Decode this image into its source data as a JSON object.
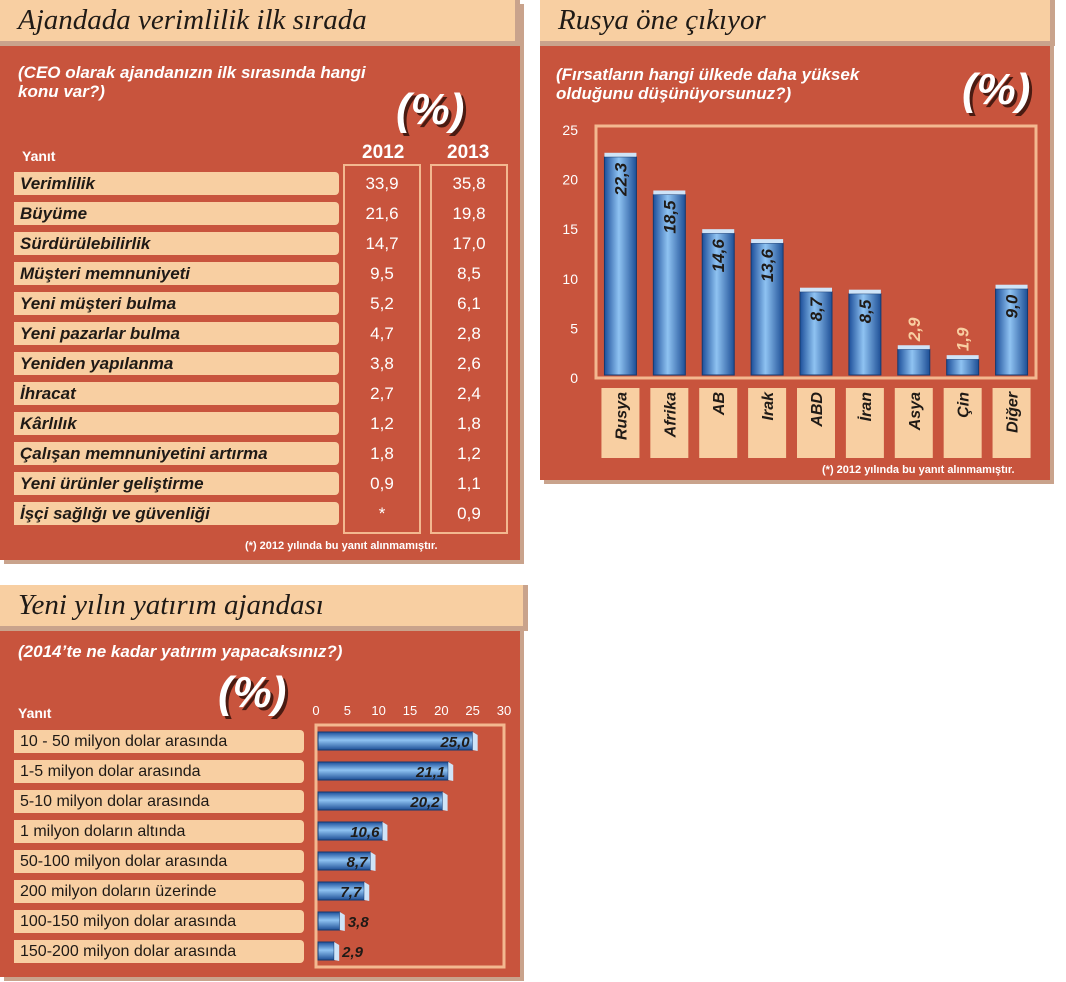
{
  "panel1": {
    "title": "Ajandada verimlilik ilk sırada",
    "question": "(CEO olarak ajandanızın ilk sırasında hangi konu var?)",
    "unit": "(%)",
    "col_header": "Yanıt",
    "footnote": "(*) 2012 yılında bu yanıt alınmamıştır."
  },
  "panel2": {
    "title": "Rusya öne çıkıyor",
    "question": "(Fırsatların hangi ülkede daha yüksek olduğunu düşünüyorsunuz?)",
    "unit": "(%)",
    "footnote": "(*) 2012 yılında bu yanıt alınmamıştır."
  },
  "panel3": {
    "title": "Yeni yılın yatırım ajandası",
    "question": "(2014’te ne kadar yatırım yapacaksınız?)",
    "unit": "(%)",
    "col_header": "Yanıt"
  },
  "chart_data": [
    {
      "type": "table",
      "columns": [
        "2012",
        "2013"
      ],
      "rows": [
        {
          "label": "Verimlilik",
          "values": [
            "33,9",
            "35,8"
          ]
        },
        {
          "label": "Büyüme",
          "values": [
            "21,6",
            "19,8"
          ]
        },
        {
          "label": "Sürdürülebilirlik",
          "values": [
            "14,7",
            "17,0"
          ]
        },
        {
          "label": "Müşteri memnuniyeti",
          "values": [
            "9,5",
            "8,5"
          ]
        },
        {
          "label": "Yeni müşteri bulma",
          "values": [
            "5,2",
            "6,1"
          ]
        },
        {
          "label": "Yeni pazarlar bulma",
          "values": [
            "4,7",
            "2,8"
          ]
        },
        {
          "label": "Yeniden yapılanma",
          "values": [
            "3,8",
            "2,6"
          ]
        },
        {
          "label": "İhracat",
          "values": [
            "2,7",
            "2,4"
          ]
        },
        {
          "label": "Kârlılık",
          "values": [
            "1,2",
            "1,8"
          ]
        },
        {
          "label": "Çalışan memnuniyetini artırma",
          "values": [
            "1,8",
            "1,2"
          ]
        },
        {
          "label": "Yeni ürünler geliştirme",
          "values": [
            "0,9",
            "1,1"
          ]
        },
        {
          "label": "İşçi sağlığı ve güvenliği",
          "values": [
            "*",
            "0,9"
          ]
        }
      ]
    },
    {
      "type": "bar",
      "categories": [
        "Rusya",
        "Afrika",
        "AB",
        "Irak",
        "ABD",
        "İran",
        "Asya",
        "Çin",
        "Diğer"
      ],
      "values": [
        22.3,
        18.5,
        14.6,
        13.6,
        8.7,
        8.5,
        2.9,
        1.9,
        9.0
      ],
      "value_labels": [
        "22,3",
        "18,5",
        "14,6",
        "13,6",
        "8,7",
        "8,5",
        "2,9",
        "1,9",
        "9,0"
      ],
      "yticks": [
        "0",
        "5",
        "10",
        "15",
        "20",
        "25"
      ],
      "ylim": [
        0,
        25
      ],
      "grid": false
    },
    {
      "type": "bar",
      "orientation": "horizontal",
      "categories": [
        "10 - 50 milyon dolar arasında",
        "1-5 milyon dolar arasında",
        "5-10 milyon dolar arasında",
        "1 milyon doların altında",
        "50-100 milyon dolar arasında",
        "200 milyon doların üzerinde",
        "100-150 milyon dolar arasında",
        "150-200 milyon dolar arasında"
      ],
      "values": [
        25.0,
        21.1,
        20.2,
        10.6,
        8.7,
        7.7,
        3.8,
        2.9
      ],
      "value_labels": [
        "25,0",
        "21,1",
        "20,2",
        "10,6",
        "8,7",
        "7,7",
        "3,8",
        "2,9"
      ],
      "xticks": [
        "0",
        "5",
        "10",
        "15",
        "20",
        "25",
        "30"
      ],
      "xlim": [
        0,
        30
      ],
      "grid": false
    }
  ]
}
